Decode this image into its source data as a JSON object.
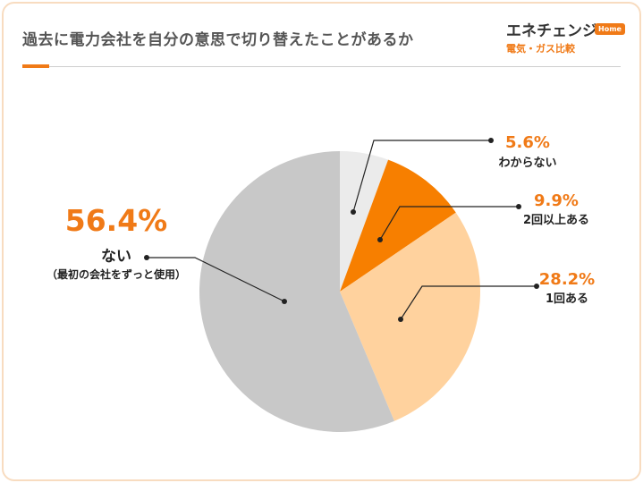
{
  "header": {
    "title": "過去に電力会社を自分の意思で切り替えたことがあるか",
    "logo_main": "エネチェンジ",
    "logo_badge": "Home",
    "logo_sub": "電気・ガス比較"
  },
  "chart_data": {
    "type": "pie",
    "start_angle": "12 o'clock, clockwise",
    "slices": [
      {
        "label": "わからない",
        "value": 5.6,
        "display": "5.6%",
        "color": "#ebebeb"
      },
      {
        "label": "2回以上ある",
        "value": 9.9,
        "display": "9.9%",
        "color": "#f77f00"
      },
      {
        "label": "1回ある",
        "value": 28.2,
        "display": "28.2%",
        "color": "#ffd29e"
      },
      {
        "label": "ない",
        "sublabel": "（最初の会社をずっと使用）",
        "value": 56.4,
        "display": "56.4%",
        "color": "#c8c8c8"
      }
    ]
  }
}
